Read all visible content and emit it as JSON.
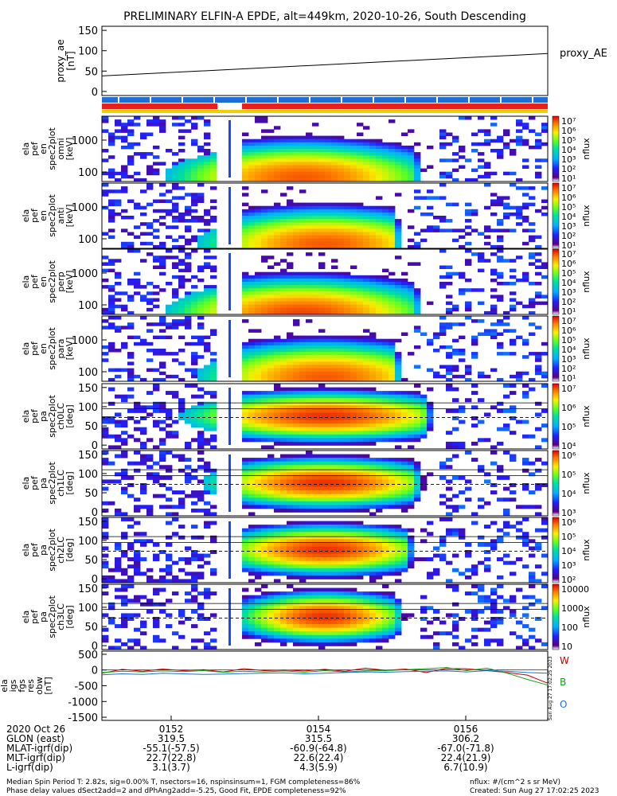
{
  "title": "PRELIMINARY ELFIN-A EPDE, alt=449km, 2020-10-26, South Descending",
  "colors": {
    "red": "#e8201a",
    "blue": "#1f6fd6",
    "yellow": "#f0d000",
    "green": "#18a018",
    "darkred": "#c00000"
  },
  "chart_data": [
    {
      "type": "line",
      "panel": "proxy_ae",
      "ylabel": "proxy_ae [nT]",
      "legend": "proxy_AE",
      "ylim": [
        -10,
        160
      ],
      "yticks": [
        "0",
        "50",
        "100",
        "150"
      ],
      "series": [
        {
          "name": "proxy_AE",
          "x": [
            0,
            1
          ],
          "y": [
            38,
            93
          ]
        }
      ]
    },
    {
      "type": "heatmap",
      "panel": "ela_pef_en_spec2plot_omni",
      "ylabel": [
        "ela",
        "pef",
        "en",
        "spec2plot",
        "omni",
        "[keV]"
      ],
      "yticks": [
        "100",
        "1000"
      ],
      "cbar_label": "nflux",
      "cbar_ticks": [
        "10⁷",
        "10⁶",
        "10⁵",
        "10⁴",
        "10³",
        "10²",
        "10¹"
      ],
      "cmax": 7,
      "peak_x": 0.45,
      "peak_y": 0.15,
      "width_x": 0.32,
      "cutoff": 0.7
    },
    {
      "type": "heatmap",
      "panel": "ela_pef_en_spec2plot_anti",
      "ylabel": [
        "ela",
        "pef",
        "en",
        "spec2plot",
        "anti",
        "[keV]"
      ],
      "yticks": [
        "100",
        "1000"
      ],
      "cbar_label": "nflux",
      "cbar_ticks": [
        "10⁷",
        "10⁶",
        "10⁵",
        "10⁴",
        "10³",
        "10²",
        "10¹"
      ],
      "cmax": 4,
      "peak_x": 0.5,
      "peak_y": 0.15,
      "width_x": 0.3,
      "cutoff": 0.65
    },
    {
      "type": "heatmap",
      "panel": "ela_pef_en_spec2plot_perp",
      "ylabel": [
        "ela",
        "pef",
        "en",
        "spec2plot",
        "perp",
        "[keV]"
      ],
      "yticks": [
        "100",
        "1000"
      ],
      "cbar_label": "nflux",
      "cbar_ticks": [
        "10⁷",
        "10⁶",
        "10⁵",
        "10⁴",
        "10³",
        "10²",
        "10¹"
      ],
      "cmax": 7,
      "peak_x": 0.45,
      "peak_y": 0.1,
      "width_x": 0.32,
      "cutoff": 0.7
    },
    {
      "type": "heatmap",
      "panel": "ela_pef_en_spec2plot_para",
      "ylabel": [
        "ela",
        "pef",
        "en",
        "spec2plot",
        "para",
        "[keV]"
      ],
      "yticks": [
        "100",
        "1000"
      ],
      "cbar_label": "nflux",
      "cbar_ticks": [
        "10⁷",
        "10⁶",
        "10⁵",
        "10⁴",
        "10³",
        "10²",
        "10¹"
      ],
      "cmax": 4,
      "peak_x": 0.5,
      "peak_y": 0.15,
      "width_x": 0.3,
      "cutoff": 0.65
    },
    {
      "type": "heatmap",
      "panel": "ela_pef_pa_spec2plot_ch0LC",
      "ylabel": [
        "ela",
        "pef",
        "pa",
        "spec2plot",
        "ch0LC",
        "[deg]"
      ],
      "yticks": [
        "0",
        "50",
        "100",
        "150"
      ],
      "cbar_label": "nflux",
      "cbar_ticks": [
        "10⁷",
        "10⁶",
        "10⁵",
        "10⁴"
      ],
      "cmax": 5,
      "peak_x": 0.5,
      "peak_y": 0.5,
      "width_x": 0.35,
      "cutoff": 0.72
    },
    {
      "type": "heatmap",
      "panel": "ela_pef_pa_spec2plot_ch1LC",
      "ylabel": [
        "ela",
        "pef",
        "pa",
        "spec2plot",
        "ch1LC",
        "[deg]"
      ],
      "yticks": [
        "0",
        "50",
        "100",
        "150"
      ],
      "cbar_label": "nflux",
      "cbar_ticks": [
        "10⁶",
        "10⁵",
        "10⁴",
        "10³"
      ],
      "cmax": 6,
      "peak_x": 0.5,
      "peak_y": 0.5,
      "width_x": 0.3,
      "cutoff": 0.7
    },
    {
      "type": "heatmap",
      "panel": "ela_pef_pa_spec2plot_ch2LC",
      "ylabel": [
        "ela",
        "pef",
        "pa",
        "spec2plot",
        "ch2LC",
        "[deg]"
      ],
      "yticks": [
        "0",
        "50",
        "100",
        "150"
      ],
      "cbar_label": "nflux",
      "cbar_ticks": [
        "10⁶",
        "10⁵",
        "10⁴",
        "10³",
        "10²"
      ],
      "cmax": 6.5,
      "peak_x": 0.5,
      "peak_y": 0.5,
      "width_x": 0.27,
      "cutoff": 0.68
    },
    {
      "type": "heatmap",
      "panel": "ela_pef_pa_spec2plot_ch3LC",
      "ylabel": [
        "ela",
        "pef",
        "pa",
        "spec2plot",
        "ch3LC",
        "[deg]"
      ],
      "yticks": [
        "0",
        "50",
        "100",
        "150"
      ],
      "cbar_label": "nflux",
      "cbar_ticks": [
        "10000",
        "1000",
        "100",
        "10"
      ],
      "cmax": 7,
      "peak_x": 0.5,
      "peak_y": 0.5,
      "width_x": 0.22,
      "cutoff": 0.66
    },
    {
      "type": "line",
      "panel": "ela_igs_fgs_res_obw",
      "ylabel": [
        "ela",
        "igs",
        "fgs",
        "res",
        "obw",
        "[nT]"
      ],
      "ylim": [
        -1600,
        600
      ],
      "yticks": [
        "500",
        "0",
        "-500",
        "-1000",
        "-1500"
      ],
      "legend": [
        "W",
        "B",
        "O"
      ],
      "series": [
        {
          "name": "W",
          "y": [
            -100,
            20,
            -40,
            30,
            -20,
            10,
            -60,
            40,
            -20,
            0,
            -30,
            20,
            -40,
            60,
            -10,
            30,
            -80,
            50,
            40,
            -20,
            -80,
            -160,
            -420
          ]
        },
        {
          "name": "B",
          "y": [
            -80,
            -40,
            -60,
            -30,
            -50,
            -20,
            -70,
            -40,
            -60,
            -30,
            -70,
            -20,
            -60,
            -30,
            -20,
            10,
            40,
            80,
            -20,
            60,
            -100,
            -300,
            -480
          ]
        },
        {
          "name": "O",
          "y": [
            -150,
            -120,
            -140,
            -100,
            -120,
            -140,
            -130,
            -110,
            -100,
            -90,
            -120,
            -100,
            -80,
            -60,
            -70,
            -50,
            -40,
            -30,
            -60,
            -20,
            -40,
            -80,
            -100
          ]
        }
      ]
    }
  ],
  "xaxis": {
    "rows": [
      {
        "label": "2020 Oct 26",
        "vals": [
          "0152",
          "0154",
          "0156"
        ]
      },
      {
        "label": "GLON (east)",
        "vals": [
          "319.5",
          "315.5",
          "306.2"
        ]
      },
      {
        "label": "MLAT-igrf(dip)",
        "vals": [
          "-55.1(-57.5)",
          "-60.9(-64.8)",
          "-67.0(-71.8)"
        ]
      },
      {
        "label": "MLT-igrf(dip)",
        "vals": [
          "22.7(22.8)",
          "22.6(22.4)",
          "22.4(21.9)"
        ]
      },
      {
        "label": "L-igrf(dip)",
        "vals": [
          "3.1(3.7)",
          "4.3(5.9)",
          "6.7(10.9)"
        ]
      }
    ]
  },
  "footer": {
    "left1": "Median Spin Period T: 2.82s, sig=0.00% T, nsectors=16, nspinsinsum=1, FGM completeness=86%",
    "left2": "Phase delay values dSect2add=2 and dPhAng2add=-5.25, Good Fit, EPDE completeness=92%",
    "right1": "nflux: #/(cm^2 s sr MeV)",
    "right2": "Created: Sun Aug 27 17:02:25 2023",
    "stamp": "Sun Aug 27 17:02:25 2023"
  }
}
